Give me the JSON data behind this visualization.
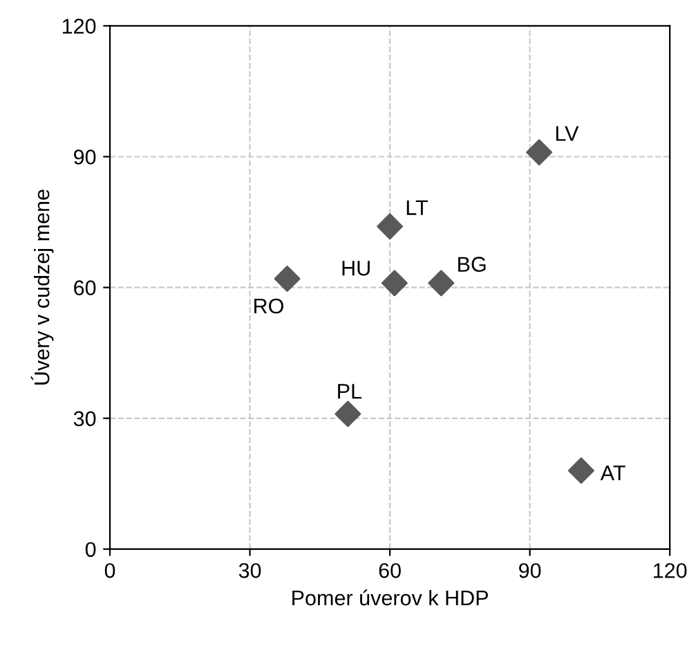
{
  "chart_data": {
    "type": "scatter",
    "xlabel": "Pomer úverov k HDP",
    "ylabel": "Úvery v cudzej mene",
    "series": [
      {
        "color": "#595959",
        "x": [
          92,
          60,
          61,
          71,
          38,
          51,
          101
        ],
        "values": [
          91,
          74,
          61,
          61,
          62,
          31,
          18
        ]
      }
    ],
    "annotations": [
      {
        "text": "LV",
        "x": 92,
        "y": 91
      },
      {
        "text": "LT",
        "x": 60,
        "y": 74
      },
      {
        "text": "HU",
        "x": 61,
        "y": 61
      },
      {
        "text": "BG",
        "x": 71,
        "y": 61
      },
      {
        "text": "RO",
        "x": 38,
        "y": 62
      },
      {
        "text": "PL",
        "x": 51,
        "y": 31
      },
      {
        "text": "AT",
        "x": 101,
        "y": 18
      }
    ],
    "xlim": [
      0,
      120
    ],
    "xticks": [
      0,
      30,
      60,
      90,
      120
    ],
    "ylim": [
      0,
      120
    ],
    "yticks": [
      0,
      30,
      60,
      90,
      120
    ],
    "grid": true,
    "marker": "diamond"
  }
}
